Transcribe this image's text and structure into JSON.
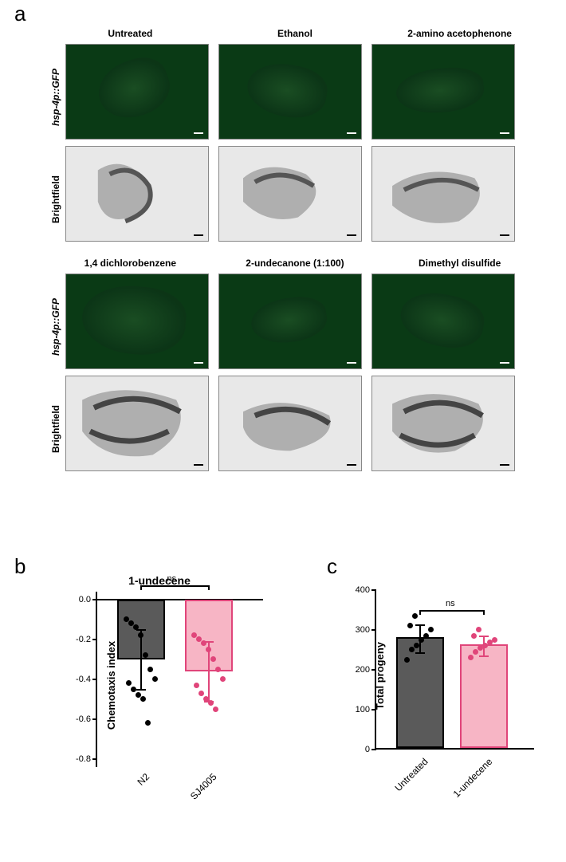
{
  "panel_labels": {
    "a": "a",
    "b": "b",
    "c": "c"
  },
  "figure_a": {
    "section1": {
      "columns": [
        "Untreated",
        "Ethanol",
        "2-amino acetophenone"
      ],
      "row_labels": [
        "hsp-4p::GFP",
        "Brightfield"
      ]
    },
    "section2": {
      "columns": [
        "1,4 dichlorobenzene",
        "2-undecanone (1:100)",
        "Dimethyl disulfide"
      ],
      "row_labels": [
        "hsp-4p::GFP",
        "Brightfield"
      ]
    },
    "colors": {
      "green_bg": "#0a3a15",
      "bright_bg": "#e8e8e8",
      "scalebar_light": "#ffffff",
      "scalebar_dark": "#000000"
    }
  },
  "chart_b": {
    "type": "bar",
    "title": "1-undecene",
    "ylabel": "Chemotaxis index",
    "categories": [
      "N2",
      "SJ4005"
    ],
    "values": [
      -0.3,
      -0.36
    ],
    "errors": [
      0.15,
      0.15
    ],
    "bar_colors": [
      "#5a5a5a",
      "#f7b5c5"
    ],
    "bar_border_colors": [
      "#000000",
      "#e0457a"
    ],
    "dot_colors": [
      "#000000",
      "#e0457a"
    ],
    "ylim": [
      -0.8,
      0.0
    ],
    "yticks": [
      0.0,
      -0.2,
      -0.4,
      -0.6,
      -0.8
    ],
    "ytick_labels": [
      "0.0",
      "-0.2",
      "-0.4",
      "-0.6",
      "-0.8"
    ],
    "sig_label": "ns",
    "n2_points": [
      -0.1,
      -0.12,
      -0.14,
      -0.18,
      -0.28,
      -0.35,
      -0.4,
      -0.42,
      -0.45,
      -0.48,
      -0.5,
      -0.62
    ],
    "sj_points": [
      -0.18,
      -0.2,
      -0.22,
      -0.25,
      -0.3,
      -0.35,
      -0.4,
      -0.43,
      -0.47,
      -0.5,
      -0.52,
      -0.55
    ],
    "background_color": "#ffffff",
    "title_fontsize": 14,
    "label_fontsize": 13
  },
  "chart_c": {
    "type": "bar",
    "ylabel": "Total progeny",
    "categories": [
      "Untreated",
      "1-undecene"
    ],
    "values": [
      278,
      260
    ],
    "errors": [
      35,
      25
    ],
    "bar_colors": [
      "#5a5a5a",
      "#f7b5c5"
    ],
    "bar_border_colors": [
      "#000000",
      "#e0457a"
    ],
    "dot_colors": [
      "#000000",
      "#e0457a"
    ],
    "ylim": [
      0,
      400
    ],
    "yticks": [
      0,
      100,
      200,
      300,
      400
    ],
    "ytick_labels": [
      "0",
      "100",
      "200",
      "300",
      "400"
    ],
    "sig_label": "ns",
    "untreated_points": [
      225,
      250,
      260,
      275,
      285,
      300,
      310,
      335
    ],
    "undecene_points": [
      230,
      245,
      255,
      260,
      268,
      275,
      285,
      300
    ],
    "background_color": "#ffffff",
    "label_fontsize": 13
  }
}
